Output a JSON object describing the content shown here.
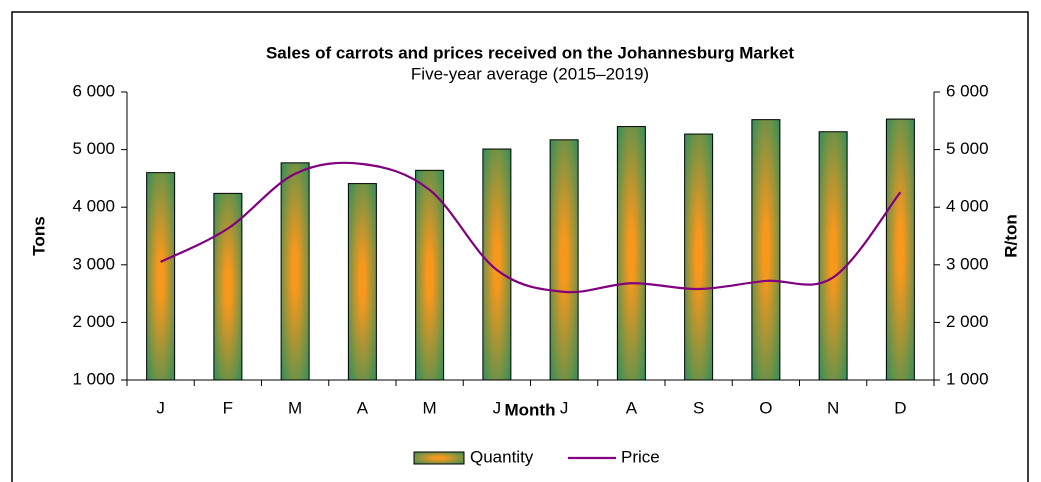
{
  "chart_data": {
    "type": "bar-line",
    "title": "Sales of carrots and prices received on the Johannesburg Market",
    "subtitle": "Five-year average (2015–2019)",
    "x_label": "Month",
    "y_label": "Tons",
    "y2_label": "R/ton",
    "categories": [
      "J",
      "F",
      "M",
      "A",
      "M",
      "J",
      "J",
      "A",
      "S",
      "O",
      "N",
      "D"
    ],
    "series": [
      {
        "name": "Quantity",
        "type": "bar",
        "color": "#f7981d",
        "edge_color": "#2f8f5b",
        "values": [
          4600,
          4240,
          4770,
          4410,
          4640,
          5010,
          5170,
          5400,
          5270,
          5520,
          5310,
          5530
        ]
      },
      {
        "name": "Price",
        "type": "line",
        "axis": "y2",
        "color": "#800080",
        "values": [
          3050,
          3630,
          4580,
          4750,
          4300,
          2910,
          2530,
          2680,
          2580,
          2720,
          2780,
          4260
        ]
      }
    ],
    "ylim": [
      1000,
      6000
    ],
    "yticks": [
      {
        "value": 1000,
        "label": "1 000"
      },
      {
        "value": 2000,
        "label": "2 000"
      },
      {
        "value": 3000,
        "label": "3 000"
      },
      {
        "value": 4000,
        "label": "4 000"
      },
      {
        "value": 5000,
        "label": "5 000"
      },
      {
        "value": 6000,
        "label": "6 000"
      }
    ],
    "y2lim": [
      1000,
      6000
    ],
    "y2ticks": [
      {
        "value": 1000,
        "label": "1 000"
      },
      {
        "value": 2000,
        "label": "2 000"
      },
      {
        "value": 3000,
        "label": "3 000"
      },
      {
        "value": 4000,
        "label": "4 000"
      },
      {
        "value": 5000,
        "label": "5 000"
      },
      {
        "value": 6000,
        "label": "6 000"
      }
    ],
    "legend": "bottom"
  }
}
